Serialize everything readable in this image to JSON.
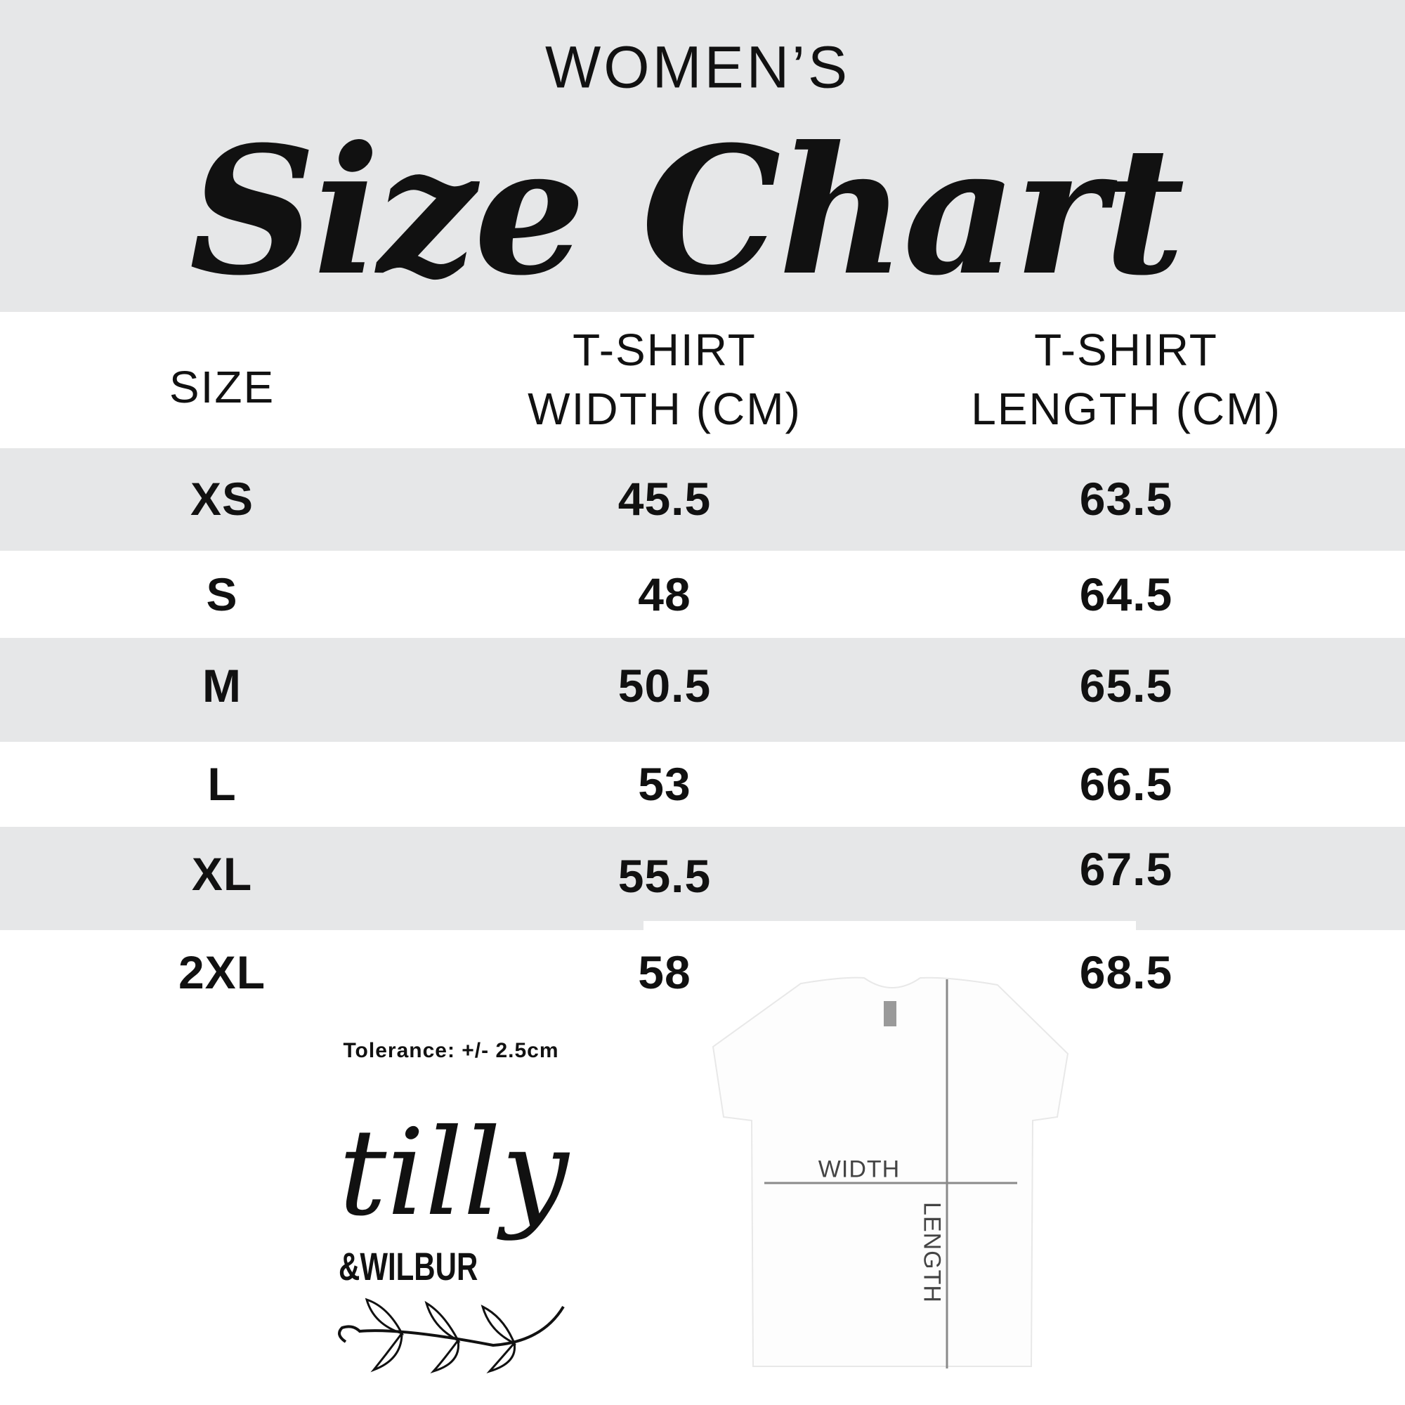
{
  "header": {
    "title_top": "WOMEN’S",
    "title_script": "Size Chart"
  },
  "table": {
    "columns": [
      "SIZE",
      "T-SHIRT\nWIDTH (CM)",
      "T-SHIRT\nLENGTH (CM)"
    ],
    "col_lines": [
      [
        "SIZE"
      ],
      [
        "T-SHIRT",
        "WIDTH (CM)"
      ],
      [
        "T-SHIRT",
        "LENGTH (CM)"
      ]
    ],
    "rows": [
      {
        "size": "XS",
        "width": "45.5",
        "length": "63.5"
      },
      {
        "size": "S",
        "width": "48",
        "length": "64.5"
      },
      {
        "size": "M",
        "width": "50.5",
        "length": "65.5"
      },
      {
        "size": "L",
        "width": "53",
        "length": "66.5"
      },
      {
        "size": "XL",
        "width": "55.5",
        "length": "67.5"
      },
      {
        "size": "2XL",
        "width": "58",
        "length": "68.5"
      }
    ]
  },
  "tolerance": "Tolerance: +/- 2.5cm",
  "diagram": {
    "width_label": "WIDTH",
    "length_label": "LENGTH"
  },
  "logo": {
    "text_main": "tilly",
    "text_sub": "&WILBUR"
  },
  "colors": {
    "band": "#e6e7e8",
    "text": "#111111",
    "measure_line": "#8a8a8a"
  }
}
